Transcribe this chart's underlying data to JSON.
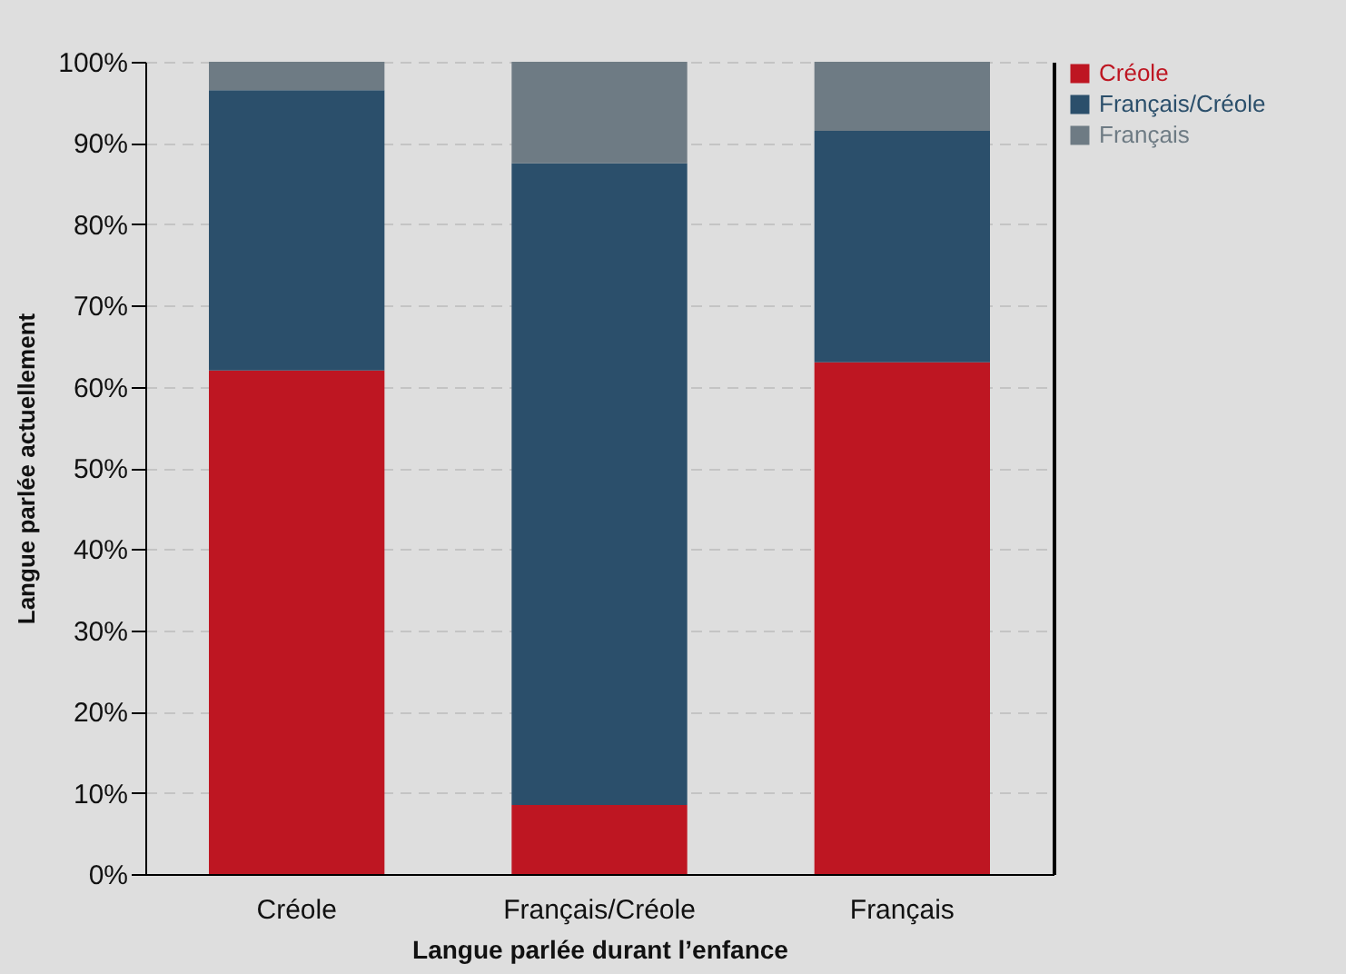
{
  "chart_data": {
    "type": "bar",
    "stacked": true,
    "xlabel": "Langue parlée durant l’enfance",
    "ylabel": "Langue parlée actuellement",
    "categories": [
      "Créole",
      "Français/Créole",
      "Français"
    ],
    "series": [
      {
        "name": "Créole",
        "color": "#be1622",
        "values": [
          62,
          8.5,
          63
        ]
      },
      {
        "name": "Français/Créole",
        "color": "#2b4f6b",
        "values": [
          34.5,
          79,
          28.5
        ]
      },
      {
        "name": "Français",
        "color": "#6e7b84",
        "values": [
          3.5,
          12.5,
          8.5
        ]
      }
    ],
    "ylim": [
      0,
      100
    ],
    "yticks": [
      {
        "value": 0,
        "label": "0%"
      },
      {
        "value": 10,
        "label": "10%"
      },
      {
        "value": 20,
        "label": "20%"
      },
      {
        "value": 30,
        "label": "30%"
      },
      {
        "value": 40,
        "label": "40%"
      },
      {
        "value": 50,
        "label": "50%"
      },
      {
        "value": 60,
        "label": "60%"
      },
      {
        "value": 70,
        "label": "70%"
      },
      {
        "value": 80,
        "label": "80%"
      },
      {
        "value": 90,
        "label": "90%"
      },
      {
        "value": 100,
        "label": "100%"
      }
    ],
    "grid": "y",
    "legend": "right"
  }
}
